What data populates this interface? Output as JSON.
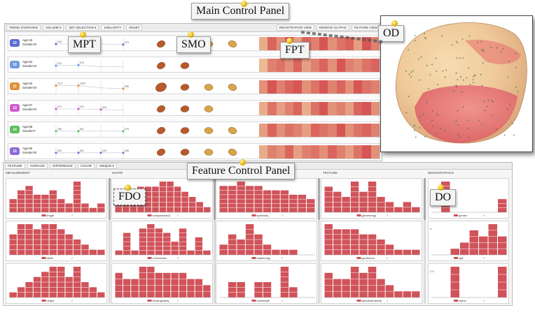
{
  "callouts": {
    "main": "Main Control Panel",
    "feature": "Feature Control Panel",
    "mpt": "MPT",
    "smo": "SMO",
    "fpt": "FPT",
    "od": "OD",
    "fdo": "FDO",
    "do": "DO"
  },
  "toolbar": {
    "left": [
      "TREND OVERVIEW",
      "VOLUME ▾",
      "SET SELECTION ▾",
      "SIMILARITY",
      "RESET"
    ],
    "right": [
      "REGISTRATION VIEW",
      "REMOVE GLYPHS",
      "FEATURE VIEW"
    ]
  },
  "colors": {
    "bar": "#d0535a",
    "accent_red": "#c0393f",
    "fpt_low": "#f3d7a6",
    "fpt_high": "#d3484c",
    "shape_brown": "#b85a2b",
    "shape_gold": "#d9a548",
    "badge_blue": "#5b6ed1",
    "badge_lightblue": "#6d9be0",
    "badge_orange": "#e0913a",
    "badge_magenta": "#cf5cc9",
    "badge_green": "#5cc05c",
    "badge_purple": "#8a6ad8"
  },
  "patients": [
    {
      "id": "10",
      "age": "Age:42",
      "gender": "Gender:M",
      "color": "#5b6ed1",
      "values": [
        "616",
        "",
        "",
        "570"
      ],
      "trend": [
        0.5,
        0.5,
        0.5,
        0.55
      ]
    },
    {
      "id": "10",
      "age": "Age:62",
      "gender": "Gender:M",
      "color": "#6d9be0",
      "values": [
        "675",
        "676",
        "",
        ""
      ],
      "trend": [
        0.5,
        0.45,
        0.6,
        0.6
      ]
    },
    {
      "id": "11",
      "age": "Age:62",
      "gender": "Gender:M",
      "color": "#e0913a",
      "values": [
        "1171",
        "1169",
        "",
        "956"
      ],
      "trend": [
        0.35,
        0.35,
        0.55,
        0.62
      ]
    },
    {
      "id": "13",
      "age": "Age:57",
      "gender": "Gender:M",
      "color": "#cf5cc9",
      "values": [
        "572",
        "670",
        "615",
        ""
      ],
      "trend": [
        0.5,
        0.5,
        0.55,
        0.6
      ]
    },
    {
      "id": "14",
      "age": "Age:66",
      "gender": "Gender:F",
      "color": "#5cc05c",
      "values": [
        "456",
        "531",
        "",
        "676"
      ],
      "trend": [
        0.55,
        0.55,
        0.55,
        0.55
      ]
    },
    {
      "id": "15",
      "age": "Age:50",
      "gender": "Gender:M",
      "color": "#8a6ad8",
      "values": [
        "530",
        "541",
        "540",
        "266"
      ],
      "trend": [
        0.55,
        0.55,
        0.55,
        0.55
      ]
    }
  ],
  "feature_tabs": [
    "FEATURE",
    "AVERAGE",
    "DIFFERENCE",
    "COLOR",
    "UNIQUE ▾"
  ],
  "categories": [
    "MEASUREMENT",
    "SHAPE",
    "TEXTURE",
    "DEMOGRAPHICS"
  ],
  "histograms": [
    {
      "col": 0,
      "row": 0,
      "label": "length",
      "bars": [
        3,
        5,
        6,
        4,
        4,
        5,
        3,
        2,
        7,
        2,
        1,
        2
      ]
    },
    {
      "col": 0,
      "row": 1,
      "label": "width",
      "bars": [
        4,
        6,
        6,
        5,
        6,
        6,
        5,
        4,
        3,
        2,
        1,
        1
      ]
    },
    {
      "col": 0,
      "row": 2,
      "label": "height",
      "bars": [
        1,
        2,
        3,
        4,
        5,
        6,
        6,
        4,
        6,
        3,
        2,
        1
      ]
    },
    {
      "col": 1,
      "row": 0,
      "label": "compactness2",
      "bars": [
        2,
        3,
        4,
        5,
        5,
        5,
        6,
        6,
        5,
        4,
        3,
        2,
        1
      ]
    },
    {
      "col": 1,
      "row": 1,
      "label": "curvedness",
      "bars": [
        1,
        5,
        1,
        6,
        7,
        6,
        5,
        3,
        6,
        1,
        4,
        1
      ]
    },
    {
      "col": 1,
      "row": 2,
      "label": "rectangularity",
      "bars": [
        4,
        3,
        3,
        5,
        5,
        4,
        4,
        4,
        4,
        3,
        3,
        2
      ]
    },
    {
      "col": 2,
      "row": 0,
      "label": "sphericity",
      "bars": [
        6,
        6,
        7,
        6,
        6,
        5,
        5,
        5,
        4,
        4,
        3
      ]
    },
    {
      "col": 2,
      "row": 1,
      "label": "totalenergy",
      "bars": [
        2,
        4,
        3,
        6,
        4,
        2,
        1,
        1,
        1,
        0,
        0
      ]
    },
    {
      "col": 2,
      "row": 2,
      "label": "maxlength",
      "bars": [
        0,
        3,
        3,
        0,
        3,
        3,
        0,
        6,
        2,
        0,
        0
      ]
    },
    {
      "col": 3,
      "row": 0,
      "label": "glcmenergy",
      "bars": [
        5,
        4,
        3,
        6,
        4,
        6,
        3,
        2,
        1,
        2,
        1
      ]
    },
    {
      "col": 3,
      "row": 1,
      "label": "glcmhomo",
      "bars": [
        6,
        5,
        5,
        5,
        4,
        4,
        3,
        2,
        1,
        1,
        1
      ]
    },
    {
      "col": 3,
      "row": 2,
      "label": "glrmdissimilarity",
      "bars": [
        4,
        3,
        3,
        5,
        4,
        5,
        3,
        2,
        1,
        1,
        1
      ]
    }
  ],
  "demographics": [
    {
      "label": "gender",
      "y_max": "",
      "bars": [
        0,
        7,
        0,
        0,
        0,
        0,
        0,
        3
      ]
    },
    {
      "label": "age",
      "y_max": "5",
      "bars": [
        0,
        0,
        1,
        2,
        4,
        3,
        5,
        3
      ]
    },
    {
      "label": "status",
      "y_max": "2.5",
      "bars": [
        0,
        0,
        4,
        0,
        0,
        0,
        0,
        4
      ]
    }
  ]
}
